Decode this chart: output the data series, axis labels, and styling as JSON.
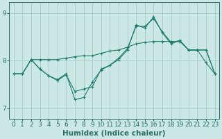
{
  "xlabel": "Humidex (Indice chaleur)",
  "xlim": [
    -0.5,
    23.5
  ],
  "ylim": [
    6.78,
    9.22
  ],
  "yticks": [
    7,
    8,
    9
  ],
  "xticks": [
    0,
    1,
    2,
    3,
    4,
    5,
    6,
    7,
    8,
    9,
    10,
    11,
    12,
    13,
    14,
    15,
    16,
    17,
    18,
    19,
    20,
    21,
    22,
    23
  ],
  "bg_color": "#cce8e4",
  "grid_color": "#aacfcc",
  "line_color": "#1e7a6e",
  "lines": [
    {
      "x": [
        0,
        1,
        2,
        3,
        4,
        5,
        6,
        7,
        8,
        9,
        10,
        11,
        12,
        13,
        14,
        15,
        16,
        17,
        18,
        19,
        20,
        21,
        22,
        23
      ],
      "y": [
        7.72,
        7.72,
        8.02,
        8.02,
        8.02,
        8.02,
        8.05,
        8.08,
        8.1,
        8.1,
        8.15,
        8.2,
        8.22,
        8.28,
        8.35,
        8.38,
        8.4,
        8.4,
        8.4,
        8.4,
        8.22,
        8.22,
        8.22,
        7.72
      ]
    },
    {
      "x": [
        0,
        1,
        2,
        3,
        4,
        5,
        6,
        7,
        8,
        9,
        10,
        11,
        12,
        13,
        14,
        15,
        16,
        17,
        18,
        19,
        20,
        21,
        22,
        23
      ],
      "y": [
        7.72,
        7.72,
        8.02,
        7.82,
        7.68,
        7.58,
        7.7,
        7.35,
        7.4,
        7.45,
        7.82,
        7.9,
        8.05,
        8.25,
        8.72,
        8.72,
        8.88,
        8.6,
        8.38,
        8.42,
        8.22,
        8.22,
        8.22,
        7.72
      ]
    },
    {
      "x": [
        0,
        1,
        2,
        3,
        4,
        5,
        6,
        7,
        8,
        9,
        10,
        11,
        12,
        13,
        14,
        15,
        16,
        17,
        18,
        19,
        20,
        21,
        22,
        23
      ],
      "y": [
        7.72,
        7.72,
        8.02,
        7.82,
        7.68,
        7.6,
        7.72,
        7.18,
        7.22,
        7.55,
        7.8,
        7.9,
        8.02,
        8.22,
        8.75,
        8.68,
        8.92,
        8.58,
        8.35,
        8.42,
        8.22,
        8.22,
        7.95,
        7.72
      ]
    }
  ],
  "font_color": "#2a6e64",
  "tick_fontsize": 6.5,
  "label_fontsize": 7.5
}
